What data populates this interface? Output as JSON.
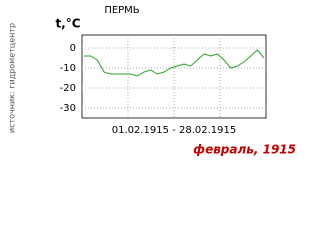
{
  "chart_data": {
    "type": "line",
    "title": "ПЕРМЬ",
    "y_label": "t,°C",
    "source": "источник: гидрометцентр",
    "x_label": "01.02.1915 - 28.02.1915",
    "footer": "февраль, 1915",
    "values": [
      -4,
      -4,
      -6,
      -12,
      -13,
      -13,
      -13,
      -13,
      -14,
      -12,
      -11,
      -13,
      -12,
      -10,
      -9,
      -8,
      -9,
      -6,
      -3,
      -4,
      -3,
      -6,
      -10,
      -9,
      -7,
      -4,
      -1,
      -5
    ],
    "color": "#2ca02c",
    "ylim": [
      -35,
      6.5
    ],
    "yticks": [
      0,
      -10,
      -20,
      -30
    ],
    "grid": true
  }
}
